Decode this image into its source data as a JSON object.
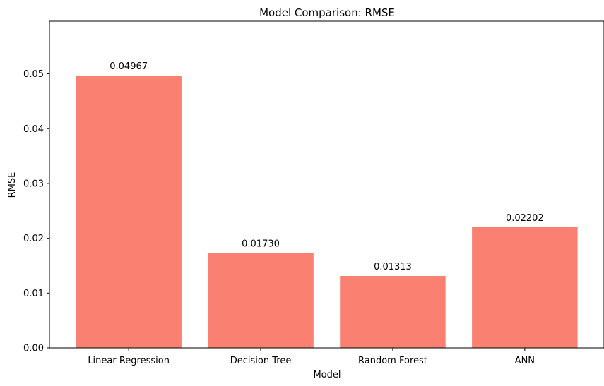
{
  "chart_data": {
    "type": "bar",
    "title": "Model Comparison: RMSE",
    "xlabel": "Model",
    "ylabel": "RMSE",
    "categories": [
      "Linear Regression",
      "Decision Tree",
      "Random Forest",
      "ANN"
    ],
    "values": [
      0.04967,
      0.0173,
      0.01313,
      0.02202
    ],
    "data_labels": [
      "0.04967",
      "0.01730",
      "0.01313",
      "0.02202"
    ],
    "ylim": [
      0,
      0.0596
    ],
    "yticks": [
      0.0,
      0.01,
      0.02,
      0.03,
      0.04,
      0.05
    ],
    "ytick_labels": [
      "0.00",
      "0.01",
      "0.02",
      "0.03",
      "0.04",
      "0.05"
    ],
    "grid": false,
    "legend": "none",
    "colors": {
      "bar": "#fa8072",
      "axis": "#000000"
    }
  }
}
